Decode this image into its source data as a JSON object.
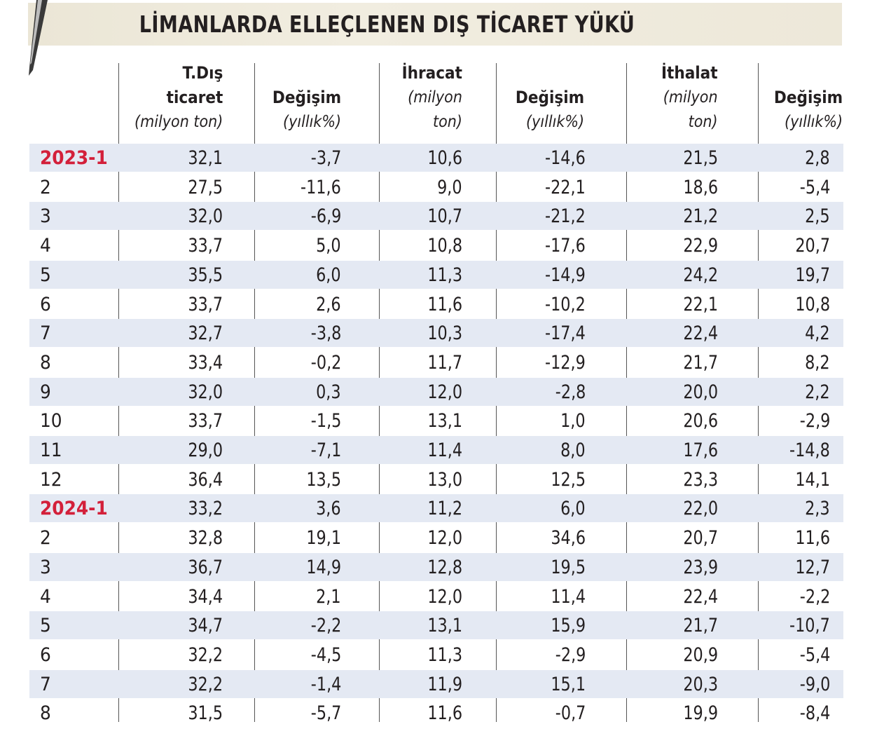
{
  "title": "LİMANLARDA ELLEÇLENEN DIŞ TİCARET YÜKÜ",
  "colors": {
    "year_label": "#d3203a",
    "row_shade": "#e4e9f3",
    "title_band": "#ede8d9"
  },
  "headers": [
    {
      "bold_lines": [
        "T.Dış",
        "ticaret"
      ],
      "italic_lines": [
        "(milyon ton)"
      ]
    },
    {
      "bold_lines": [
        "Değişim"
      ],
      "italic_lines": [
        "(yıllık%)"
      ]
    },
    {
      "bold_lines": [
        "İhracat"
      ],
      "italic_lines": [
        "(milyon",
        "ton)"
      ]
    },
    {
      "bold_lines": [
        "Değişim"
      ],
      "italic_lines": [
        "(yıllık%)"
      ]
    },
    {
      "bold_lines": [
        "İthalat"
      ],
      "italic_lines": [
        "(milyon",
        "ton)"
      ]
    },
    {
      "bold_lines": [
        "Değişim"
      ],
      "italic_lines": [
        "(yıllık%)"
      ]
    }
  ],
  "chart_data": {
    "type": "table",
    "title": "LİMANLARDA ELLEÇLENEN DIŞ TİCARET YÜKÜ",
    "columns": [
      "T.Dış ticaret (milyon ton)",
      "Değişim (yıllık%)",
      "İhracat (milyon ton)",
      "Değişim (yıllık%)",
      "İthalat (milyon ton)",
      "Değişim (yıllık%)"
    ],
    "rows": [
      {
        "period": "2023-1",
        "year_start": true,
        "values": [
          "32,1",
          "-3,7",
          "10,6",
          "-14,6",
          "21,5",
          "2,8"
        ]
      },
      {
        "period": "2",
        "values": [
          "27,5",
          "-11,6",
          "9,0",
          "-22,1",
          "18,6",
          "-5,4"
        ]
      },
      {
        "period": "3",
        "values": [
          "32,0",
          "-6,9",
          "10,7",
          "-21,2",
          "21,2",
          "2,5"
        ]
      },
      {
        "period": "4",
        "values": [
          "33,7",
          "5,0",
          "10,8",
          "-17,6",
          "22,9",
          "20,7"
        ]
      },
      {
        "period": "5",
        "values": [
          "35,5",
          "6,0",
          "11,3",
          "-14,9",
          "24,2",
          "19,7"
        ]
      },
      {
        "period": "6",
        "values": [
          "33,7",
          "2,6",
          "11,6",
          "-10,2",
          "22,1",
          "10,8"
        ]
      },
      {
        "period": "7",
        "values": [
          "32,7",
          "-3,8",
          "10,3",
          "-17,4",
          "22,4",
          "4,2"
        ]
      },
      {
        "period": "8",
        "values": [
          "33,4",
          "-0,2",
          "11,7",
          "-12,9",
          "21,7",
          "8,2"
        ]
      },
      {
        "period": "9",
        "values": [
          "32,0",
          "0,3",
          "12,0",
          "-2,8",
          "20,0",
          "2,2"
        ]
      },
      {
        "period": "10",
        "values": [
          "33,7",
          "-1,5",
          "13,1",
          "1,0",
          "20,6",
          "-2,9"
        ]
      },
      {
        "period": "11",
        "values": [
          "29,0",
          "-7,1",
          "11,4",
          "8,0",
          "17,6",
          "-14,8"
        ]
      },
      {
        "period": "12",
        "values": [
          "36,4",
          "13,5",
          "13,0",
          "12,5",
          "23,3",
          "14,1"
        ]
      },
      {
        "period": "2024-1",
        "year_start": true,
        "values": [
          "33,2",
          "3,6",
          "11,2",
          "6,0",
          "22,0",
          "2,3"
        ]
      },
      {
        "period": "2",
        "values": [
          "32,8",
          "19,1",
          "12,0",
          "34,6",
          "20,7",
          "11,6"
        ]
      },
      {
        "period": "3",
        "values": [
          "36,7",
          "14,9",
          "12,8",
          "19,5",
          "23,9",
          "12,7"
        ]
      },
      {
        "period": "4",
        "values": [
          "34,4",
          "2,1",
          "12,0",
          "11,4",
          "22,4",
          "-2,2"
        ]
      },
      {
        "period": "5",
        "values": [
          "34,7",
          "-2,2",
          "13,1",
          "15,9",
          "21,7",
          "-10,7"
        ]
      },
      {
        "period": "6",
        "values": [
          "32,2",
          "-4,5",
          "11,3",
          "-2,9",
          "20,9",
          "-5,4"
        ]
      },
      {
        "period": "7",
        "values": [
          "32,2",
          "-1,4",
          "11,9",
          "15,1",
          "20,3",
          "-9,0"
        ]
      },
      {
        "period": "8",
        "values": [
          "31,5",
          "-5,7",
          "11,6",
          "-0,7",
          "19,9",
          "-8,4"
        ]
      }
    ]
  }
}
